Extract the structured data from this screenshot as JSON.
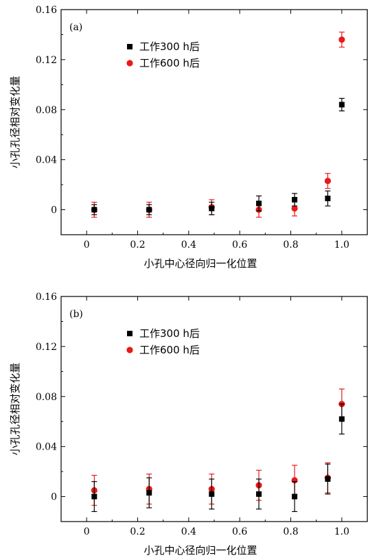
{
  "chart_data": [
    {
      "type": "scatter",
      "panel_label": "(a)",
      "xlabel": "小孔中心径向归一化位置",
      "ylabel": "小孔孔径相对变化量",
      "xlim": [
        -0.1,
        1.1
      ],
      "ylim": [
        -0.02,
        0.16
      ],
      "xticks": [
        0,
        0.2,
        0.4,
        0.6,
        0.8,
        1.0
      ],
      "xtick_labels": [
        "0",
        "0.2",
        "0.4",
        "0.6",
        "0.8",
        "1.0"
      ],
      "yticks": [
        0,
        0.04,
        0.08,
        0.12,
        0.16
      ],
      "ytick_labels": [
        "0",
        "0.04",
        "0.08",
        "0.12",
        "0.16"
      ],
      "legend_position": "upper-left",
      "series": [
        {
          "name": "工作300 h后",
          "marker": "square",
          "color": "#000000",
          "x": [
            0.03,
            0.245,
            0.49,
            0.675,
            0.815,
            0.945,
            1.0
          ],
          "y": [
            0,
            0,
            0.001,
            0.005,
            0.008,
            0.009,
            0.084
          ],
          "err": [
            0.004,
            0.004,
            0.005,
            0.006,
            0.005,
            0.006,
            0.005
          ]
        },
        {
          "name": "工作600 h后",
          "marker": "circle",
          "color": "#e8191a",
          "x": [
            0.03,
            0.245,
            0.49,
            0.675,
            0.815,
            0.945,
            1.0
          ],
          "y": [
            0,
            0,
            0.002,
            0,
            0.001,
            0.023,
            0.136
          ],
          "err": [
            0.006,
            0.006,
            0.006,
            0.006,
            0.006,
            0.006,
            0.006
          ]
        }
      ]
    },
    {
      "type": "scatter",
      "panel_label": "(b)",
      "xlabel": "小孔中心径向归一化位置",
      "ylabel": "小孔孔径相对变化量",
      "xlim": [
        -0.1,
        1.1
      ],
      "ylim": [
        -0.02,
        0.16
      ],
      "xticks": [
        0,
        0.2,
        0.4,
        0.6,
        0.8,
        1.0
      ],
      "xtick_labels": [
        "0",
        "0.2",
        "0.4",
        "0.6",
        "0.8",
        "1.0"
      ],
      "yticks": [
        0,
        0.04,
        0.08,
        0.12,
        0.16
      ],
      "ytick_labels": [
        "0",
        "0.04",
        "0.08",
        "0.12",
        "0.16"
      ],
      "legend_position": "upper-left",
      "series": [
        {
          "name": "工作300 h后",
          "marker": "square",
          "color": "#000000",
          "x": [
            0.03,
            0.245,
            0.49,
            0.675,
            0.815,
            0.945,
            1.0
          ],
          "y": [
            0,
            0.003,
            0.002,
            0.002,
            0,
            0.014,
            0.062
          ],
          "err": [
            0.012,
            0.012,
            0.012,
            0.012,
            0.012,
            0.012,
            0.012
          ]
        },
        {
          "name": "工作600 h后",
          "marker": "circle",
          "color": "#e8191a",
          "x": [
            0.03,
            0.245,
            0.49,
            0.675,
            0.815,
            0.945,
            1.0
          ],
          "y": [
            0.005,
            0.006,
            0.006,
            0.009,
            0.013,
            0.015,
            0.074
          ],
          "err": [
            0.012,
            0.012,
            0.012,
            0.012,
            0.012,
            0.012,
            0.012
          ]
        }
      ]
    }
  ]
}
